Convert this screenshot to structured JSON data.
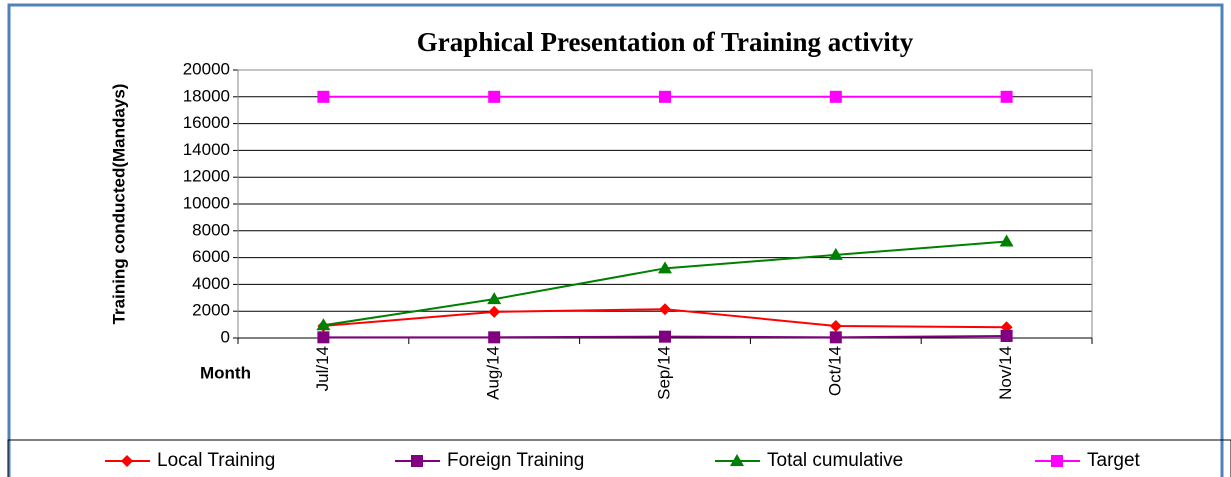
{
  "chart_data": {
    "type": "line",
    "title": "Graphical Presentation of Training activity",
    "y_label": "Training conducted(Mandays)",
    "x_label": "Month",
    "categories": [
      "Jul/14",
      "Aug/14",
      "Sep/14",
      "Oct/14",
      "Nov/14"
    ],
    "series": [
      {
        "name": "Local Training",
        "color": "#ff0000",
        "marker": "diamond",
        "values": [
          900,
          1950,
          2150,
          900,
          800
        ]
      },
      {
        "name": "Foreign Training",
        "color": "#800080",
        "marker": "square",
        "values": [
          50,
          50,
          100,
          50,
          150
        ]
      },
      {
        "name": "Total cumulative",
        "color": "#008000",
        "marker": "triangle",
        "values": [
          950,
          2900,
          5200,
          6200,
          7200
        ]
      },
      {
        "name": "Target",
        "color": "#ff00ff",
        "marker": "square",
        "values": [
          18000,
          18000,
          18000,
          18000,
          18000
        ]
      }
    ],
    "ylim": [
      0,
      20000
    ],
    "yticks": [
      0,
      2000,
      4000,
      6000,
      8000,
      10000,
      12000,
      14000,
      16000,
      18000,
      20000
    ],
    "grid": true
  }
}
